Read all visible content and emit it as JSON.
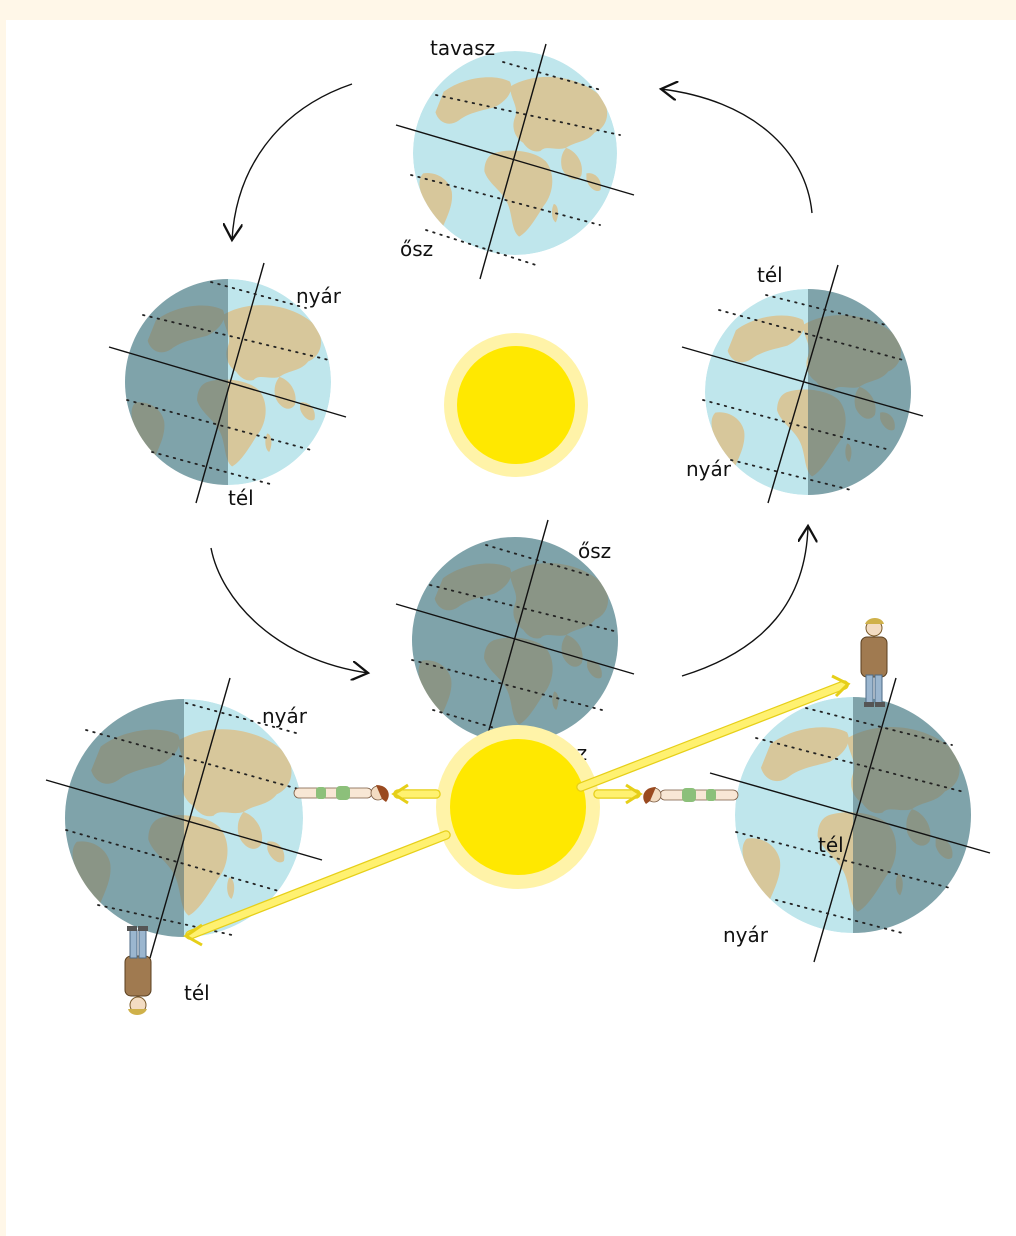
{
  "labels": {
    "top_spring": "tavasz",
    "top_autumn": "ősz",
    "left_summer": "nyár",
    "left_winter": "tél",
    "right_winter": "tél",
    "right_summer": "nyár",
    "bottom_autumn": "ősz",
    "bottom_spring": "tavasz",
    "lower_left_summer": "nyár",
    "lower_left_winter": "tél",
    "lower_right_winter": "tél",
    "lower_right_summer": "nyár"
  },
  "colors": {
    "background": "#fff7e8",
    "ocean": "#bfe6ec",
    "land": "#d7c79b",
    "night_shade": "#4b6b74",
    "sun_core": "#ffe800",
    "sun_halo": "#fff3a8",
    "ray": "#fff170"
  },
  "icons": {
    "arrows": "curved-arrow-icon",
    "people": "person-icon"
  }
}
